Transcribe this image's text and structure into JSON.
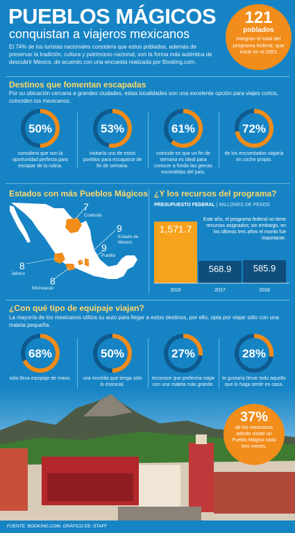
{
  "header": {
    "title": "PUEBLOS MÁGICOS",
    "subtitle": "conquistan a viajeros mexicanos",
    "intro": "El 74% de los turistas nacionales considera que estos poblados, además de preservar la tradición, cultura y patrimonio nacional, son la forma más auténtica de descubrir México, de acuerdo con una encuesta realizada por Booking.com.",
    "badge": {
      "number": "121",
      "unit": "poblados",
      "text": "integran el total del programa federal, que inició en el 2001"
    }
  },
  "destinos": {
    "title": "Destinos que fomentan escapadas",
    "description": "Por su ubicación cercana a grandes ciudades, estas localidades son una excelente opción para viajes cortos, coinciden los mexicanos.",
    "stats": [
      {
        "label": "50%",
        "value": 50,
        "caption": "considera que son la oportunidad perfecta para escapar de la rutina."
      },
      {
        "label": "53%",
        "value": 53,
        "caption": "visitaría uno de estos pueblos para escaparse de fin de semana."
      },
      {
        "label": "61%",
        "value": 61,
        "caption": "coincide en que un fin de semana es ideal para conocer a fondo las gemas escondidas del país."
      },
      {
        "label": "72%",
        "value": 72,
        "caption": "de los encuestados viajaría en coche propio."
      }
    ]
  },
  "estados": {
    "title": "Estados con más Pueblos Mágicos",
    "items": [
      {
        "count": "7",
        "state": "Coahuila"
      },
      {
        "count": "9",
        "state": "Estado de México"
      },
      {
        "count": "9",
        "state": "Puebla"
      },
      {
        "count": "8",
        "state": "Jalisco"
      },
      {
        "count": "8",
        "state": "Michoacán"
      }
    ],
    "colors": {
      "highlight": "#f28c1a",
      "land": "#ffffff"
    }
  },
  "recursos": {
    "title": "¿Y los recursos del programa?",
    "subtitle_bold": "PRESUPUESTO FEDERAL",
    "subtitle_sep": "|",
    "subtitle_units": "MILLONES DE PESOS",
    "note": "Este año, el programa federal no tiene recursos asignados; sin embargo, en los últimos tres años el monto fue importante."
  },
  "chart_data": {
    "type": "bar",
    "categories": [
      "2016",
      "2017",
      "2018"
    ],
    "values": [
      1571.7,
      568.9,
      585.9
    ],
    "value_labels": [
      "1,571.7",
      "568.9",
      "585.9"
    ],
    "colors": [
      "#f7a21c",
      "#0f4e7c",
      "#0f4e7c"
    ],
    "ylim": [
      0,
      1700
    ]
  },
  "equipaje": {
    "title": "¿Con qué tipo de equipaje viajan?",
    "description": "La mayoría de los mexicanos utiliza su auto para llegar a estos destinos, por ello, opta por viajar sólo con una maleta pequeña.",
    "stats": [
      {
        "label": "68%",
        "value": 68,
        "caption": "sólo lleva equipaje de mano."
      },
      {
        "label": "50%",
        "value": 50,
        "caption": "usa mochila que tenga sólo lo esencial."
      },
      {
        "label": "27%",
        "value": 27,
        "caption": "reconoce que preferiría viajar con una maleta más grande."
      },
      {
        "label": "28%",
        "value": 28,
        "caption": "le gustaría llevar todo aquello que lo haga sentir en casa."
      }
    ]
  },
  "badge37": {
    "number": "37%",
    "text": "de los mexicanos admite visitar un Pueblo Mágico cada tres meses."
  },
  "footer": {
    "source": "FUENTE: BOOKING.COM. GRÁFICO EE: STAFF"
  },
  "theme": {
    "background": "#1684c4",
    "accent": "#f28c1a",
    "title_yellow": "#ffd86a",
    "ring_base": "#0e5a8f"
  }
}
